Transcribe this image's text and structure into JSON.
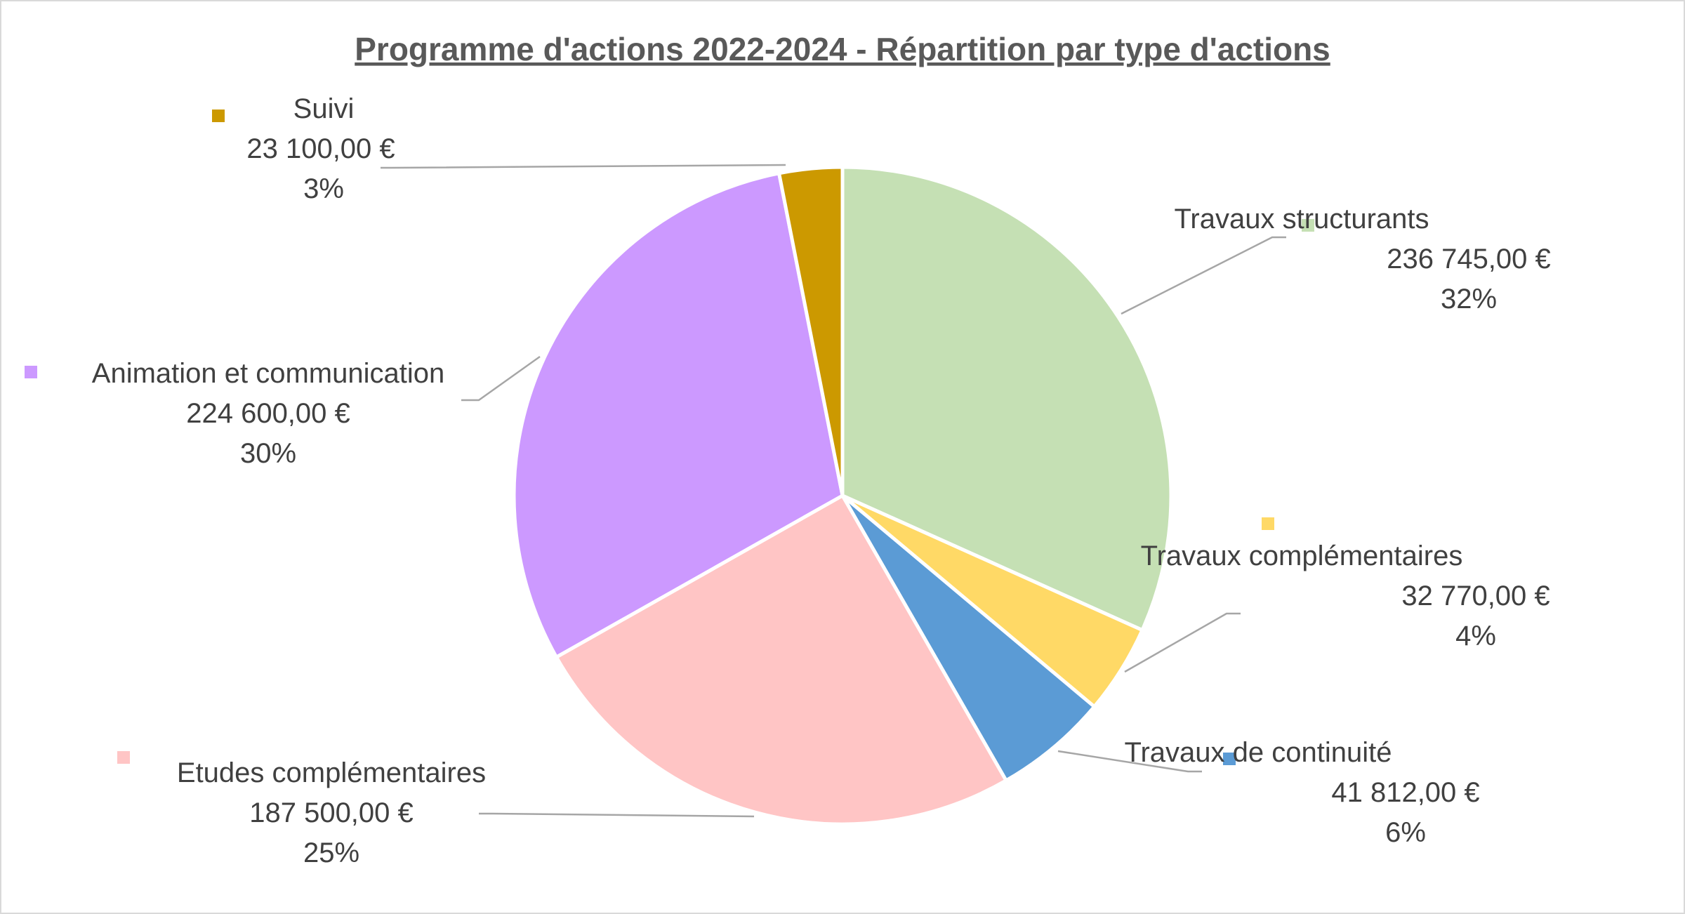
{
  "chart_data": {
    "type": "pie",
    "title": "Programme d'actions 2022-2024 - Répartition par type d'actions",
    "slices": [
      {
        "name": "Travaux structurants",
        "value": 236745,
        "value_label": "236 745,00 €",
        "percent_label": "32%",
        "color": "#c5e0b4"
      },
      {
        "name": "Travaux complémentaires",
        "value": 32770,
        "value_label": "32 770,00 €",
        "percent_label": "4%",
        "color": "#ffd966"
      },
      {
        "name": "Travaux de continuité",
        "value": 41812,
        "value_label": "41 812,00 €",
        "percent_label": "6%",
        "color": "#5b9bd5"
      },
      {
        "name": "Etudes complémentaires",
        "value": 187500,
        "value_label": "187 500,00 €",
        "percent_label": "25%",
        "color": "#ffc5c5"
      },
      {
        "name": "Animation et communication",
        "value": 224600,
        "value_label": "224 600,00 €",
        "percent_label": "30%",
        "color": "#cc99ff"
      },
      {
        "name": "Suivi",
        "value": 23100,
        "value_label": "23 100,00 €",
        "percent_label": "3%",
        "color": "#cc9900"
      }
    ],
    "legend": "none",
    "data_labels": "outside with leader lines"
  }
}
